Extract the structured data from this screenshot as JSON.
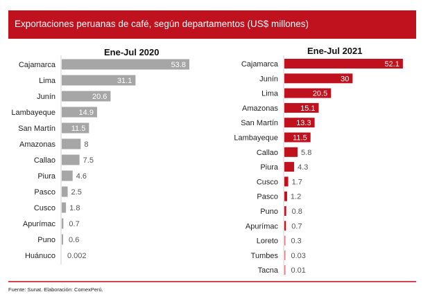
{
  "header": {
    "title": "Exportaciones peruanas de café, según departamentos (US$ millones)"
  },
  "footer": {
    "source": "Fuente: Sunat. Elaboración: ComexPerú."
  },
  "colors": {
    "header": "#c0111f",
    "bar_2020": "#a6a6a6",
    "bar_2021": "#c0111f",
    "bar_2021_light": "#d9777f",
    "label_inside": "#ffffff",
    "label_outside": "#555555"
  },
  "chart_data": [
    {
      "type": "bar",
      "orientation": "horizontal",
      "title": "Ene-Jul 2020",
      "xlabel": "",
      "ylabel": "",
      "categories": [
        "Cajamarca",
        "Lima",
        "Junín",
        "Lambayeque",
        "San Martín",
        "Amazonas",
        "Callao",
        "Piura",
        "Pasco",
        "Cusco",
        "Apurímac",
        "Puno",
        "Huánuco"
      ],
      "values": [
        53.8,
        31.1,
        20.6,
        14.9,
        11.5,
        8,
        7.5,
        4.6,
        2.5,
        1.8,
        0.7,
        0.6,
        0.002
      ],
      "labels": [
        "53.8",
        "31.1",
        "20.6",
        "14.9",
        "11.5",
        "8",
        "7.5",
        "4.6",
        "2.5",
        "1.8",
        "0.7",
        "0.6",
        "0.002"
      ],
      "xlim": [
        0,
        60
      ],
      "grid": false,
      "legend": "none"
    },
    {
      "type": "bar",
      "orientation": "horizontal",
      "title": "Ene-Jul 2021",
      "xlabel": "",
      "ylabel": "",
      "categories": [
        "Cajamarca",
        "Junín",
        "Lima",
        "Amazonas",
        "San Martín",
        "Lambayeque",
        "Callao",
        "Piura",
        "Cusco",
        "Pasco",
        "Puno",
        "Apurímac",
        "Loreto",
        "Tumbes",
        "Tacna"
      ],
      "values": [
        52.1,
        30,
        20.5,
        15.1,
        13.3,
        11.5,
        5.8,
        4.3,
        1.7,
        1.2,
        0.8,
        0.7,
        0.3,
        0.03,
        0.01
      ],
      "labels": [
        "52.1",
        "30",
        "20.5",
        "15.1",
        "13.3",
        "11.5",
        "5.8",
        "4.3",
        "1.7",
        "1.2",
        "0.8",
        "0.7",
        "0.3",
        "0.03",
        "0.01"
      ],
      "xlim": [
        0,
        60
      ],
      "grid": false,
      "legend": "none"
    }
  ]
}
